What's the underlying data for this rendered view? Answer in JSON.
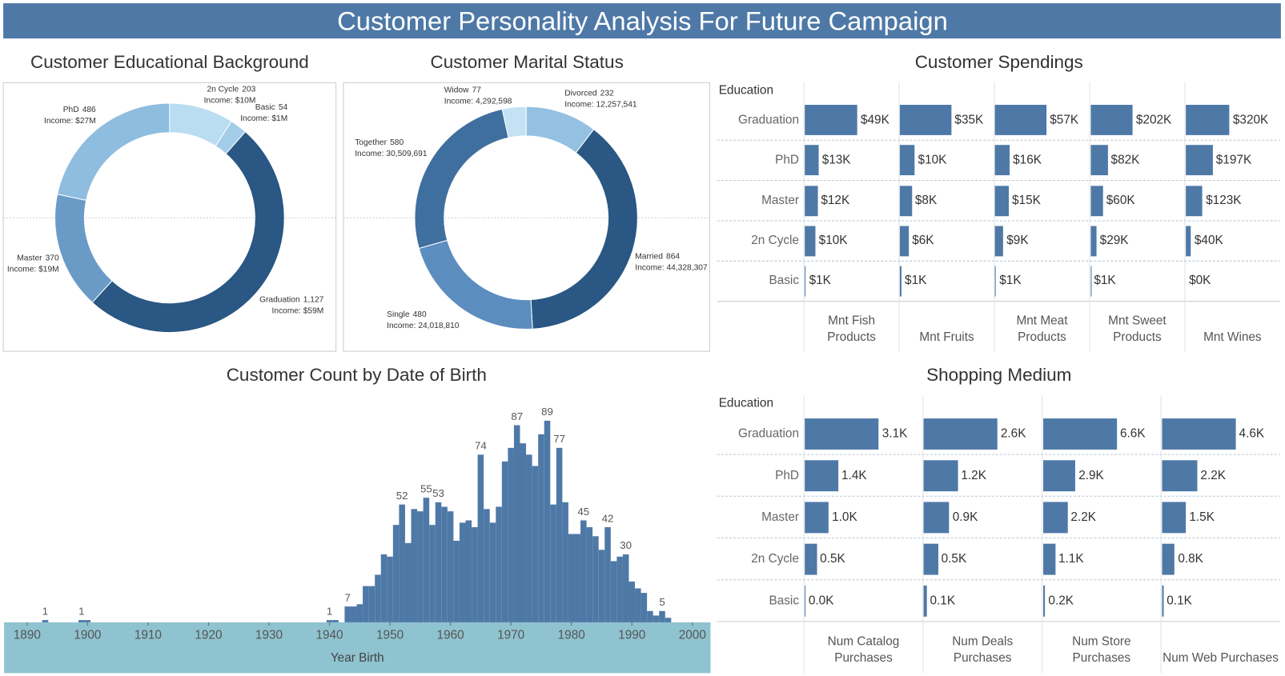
{
  "title": "Customer Personality Analysis For Future Campaign",
  "chart_data": [
    {
      "type": "pie",
      "title": "Customer Educational Background",
      "categories": [
        "2n Cycle",
        "Basic",
        "Graduation",
        "Master",
        "PhD"
      ],
      "values": [
        203,
        54,
        1127,
        370,
        486
      ],
      "value_labels": [
        "203",
        "54",
        "1,127",
        "370",
        "486"
      ],
      "income_labels": [
        "Income: $10M",
        "Income: $1M",
        "Income: $59M",
        "Income: $19M",
        "Income: $27M"
      ],
      "colors": [
        "#b9ddf1",
        "#a3cce9",
        "#2a5783",
        "#6a9bc7",
        "#8fbde0"
      ]
    },
    {
      "type": "pie",
      "title": "Customer Marital Status",
      "categories": [
        "Divorced",
        "Married",
        "Single",
        "Together",
        "Widow"
      ],
      "values": [
        232,
        864,
        480,
        580,
        77
      ],
      "value_labels": [
        "232",
        "864",
        "480",
        "580",
        "77"
      ],
      "income_labels": [
        "Income: 12,257,541",
        "Income: 44,328,307",
        "Income: 24,018,810",
        "Income: 30,509,691",
        "Income: 4,292,598"
      ],
      "colors": [
        "#94c1e2",
        "#2a5783",
        "#5b8dbf",
        "#3f6f9f",
        "#c3e2f4"
      ]
    },
    {
      "type": "bar",
      "orientation": "horizontal",
      "title": "Customer Spendings",
      "row_header": "Education",
      "categories": [
        "Graduation",
        "PhD",
        "Master",
        "2n Cycle",
        "Basic"
      ],
      "color": "#4e79a7",
      "series": [
        {
          "name": "Mnt Fish Products",
          "values": [
            49000,
            13000,
            12000,
            10000,
            1000
          ],
          "value_labels": [
            "$49K",
            "$13K",
            "$12K",
            "$10K",
            "$1K"
          ],
          "xlim": [
            0,
            78000
          ]
        },
        {
          "name": "Mnt Fruits",
          "values": [
            35000,
            10000,
            8000,
            6000,
            1000
          ],
          "value_labels": [
            "$35K",
            "$10K",
            "$8K",
            "$6K",
            "$1K"
          ],
          "xlim": [
            0,
            57000
          ]
        },
        {
          "name": "Mnt Meat Products",
          "values": [
            57000,
            16000,
            15000,
            9000,
            1000
          ],
          "value_labels": [
            "$57K",
            "$16K",
            "$15K",
            "$9K",
            "$1K"
          ],
          "xlim": [
            0,
            93000
          ]
        },
        {
          "name": "Mnt Sweet Products",
          "values": [
            202000,
            82000,
            60000,
            29000,
            1000
          ],
          "value_labels": [
            "$202K",
            "$82K",
            "$60K",
            "$29K",
            "$1K"
          ],
          "xlim": [
            0,
            400000
          ]
        },
        {
          "name": "Mnt Wines",
          "values": [
            320000,
            197000,
            123000,
            40000,
            400
          ],
          "value_labels": [
            "$320K",
            "$197K",
            "$123K",
            "$40K",
            "$0K"
          ],
          "xlim": [
            0,
            610000
          ]
        }
      ]
    },
    {
      "type": "bar",
      "title": "Customer Count by Date of Birth",
      "x_label": "Year Birth",
      "color": "#4e79a7",
      "x": [
        1893,
        1899,
        1900,
        1940,
        1941,
        1943,
        1944,
        1945,
        1946,
        1947,
        1948,
        1949,
        1950,
        1951,
        1952,
        1953,
        1954,
        1955,
        1956,
        1957,
        1958,
        1959,
        1960,
        1961,
        1962,
        1963,
        1964,
        1965,
        1966,
        1967,
        1968,
        1969,
        1970,
        1971,
        1972,
        1973,
        1974,
        1975,
        1976,
        1977,
        1978,
        1979,
        1980,
        1981,
        1982,
        1983,
        1984,
        1985,
        1986,
        1987,
        1988,
        1989,
        1990,
        1991,
        1992,
        1993,
        1994,
        1995,
        1996
      ],
      "values": [
        1,
        1,
        1,
        1,
        1,
        7,
        7,
        8,
        16,
        16,
        21,
        30,
        29,
        43,
        52,
        35,
        50,
        49,
        55,
        43,
        53,
        51,
        49,
        36,
        44,
        45,
        42,
        74,
        50,
        44,
        51,
        71,
        77,
        87,
        79,
        74,
        69,
        83,
        89,
        52,
        77,
        53,
        39,
        39,
        45,
        42,
        38,
        32,
        42,
        27,
        29,
        30,
        18,
        15,
        13,
        5,
        3,
        5,
        2
      ],
      "value_labels": [
        "1",
        "1",
        null,
        "1",
        null,
        "7",
        null,
        null,
        null,
        null,
        null,
        null,
        null,
        null,
        "52",
        null,
        null,
        null,
        "55",
        null,
        "53",
        null,
        null,
        null,
        null,
        null,
        null,
        "74",
        null,
        null,
        null,
        null,
        null,
        "87",
        null,
        null,
        null,
        null,
        "89",
        null,
        "77",
        null,
        null,
        null,
        "45",
        null,
        null,
        null,
        "42",
        null,
        null,
        "30",
        null,
        null,
        null,
        null,
        null,
        "5",
        null
      ],
      "xlim": [
        1886.2,
        2003
      ],
      "ylim": [
        0,
        103
      ],
      "xticks": [
        1890,
        1900,
        1910,
        1920,
        1930,
        1940,
        1950,
        1960,
        1970,
        1980,
        1990,
        2000
      ]
    },
    {
      "type": "bar",
      "orientation": "horizontal",
      "title": "Shopping Medium",
      "row_header": "Education",
      "categories": [
        "Graduation",
        "PhD",
        "Master",
        "2n Cycle",
        "Basic"
      ],
      "color": "#4e79a7",
      "series": [
        {
          "name": "Num Catalog Purchases",
          "values": [
            3100,
            1400,
            1000,
            500,
            20
          ],
          "value_labels": [
            "3.1K",
            "1.4K",
            "1.0K",
            "0.5K",
            "0.0K"
          ],
          "xlim": [
            0,
            4500
          ]
        },
        {
          "name": "Num Deals Purchases",
          "values": [
            2600,
            1200,
            900,
            500,
            100
          ],
          "value_labels": [
            "2.6K",
            "1.2K",
            "0.9K",
            "0.5K",
            "0.1K"
          ],
          "xlim": [
            0,
            3800
          ]
        },
        {
          "name": "Num Store Purchases",
          "values": [
            6600,
            2900,
            2200,
            1100,
            200
          ],
          "value_labels": [
            "6.6K",
            "2.9K",
            "2.2K",
            "1.1K",
            "0.2K"
          ],
          "xlim": [
            0,
            9600
          ]
        },
        {
          "name": "Num Web Purchases",
          "values": [
            4600,
            2200,
            1500,
            800,
            100
          ],
          "value_labels": [
            "4.6K",
            "2.2K",
            "1.5K",
            "0.8K",
            "0.1K"
          ],
          "xlim": [
            0,
            6700
          ]
        }
      ]
    }
  ]
}
